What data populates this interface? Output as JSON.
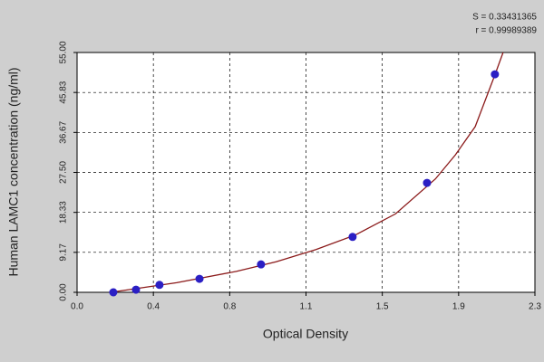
{
  "chart_data": {
    "type": "scatter",
    "annotations": [
      "S = 0.33431365",
      "r = 0.99989389"
    ],
    "xlabel": "Optical Density",
    "ylabel": "Human LAMC1 concentration (ng/ml)",
    "x": [
      0.182,
      0.296,
      0.414,
      0.615,
      0.924,
      1.384,
      1.758,
      2.099
    ],
    "values": [
      0.0,
      0.6,
      1.7,
      3.1,
      6.4,
      12.7,
      25.1,
      50.0
    ],
    "color": "#2b1fc4",
    "curve": {
      "x": [
        0.2,
        0.5,
        0.8,
        1.0,
        1.2,
        1.4,
        1.6,
        1.8,
        1.9,
        2.0,
        2.1,
        2.14
      ],
      "values": [
        0.2,
        2.2,
        4.8,
        7.0,
        9.8,
        13.2,
        18.0,
        26.0,
        31.5,
        38.0,
        50.0,
        55.0
      ],
      "color": "#8b1a1a"
    },
    "xlim": [
      0,
      2.3
    ],
    "ylim": [
      0,
      55
    ],
    "xticks": [
      {
        "value": 0,
        "label": "0.0"
      },
      {
        "value": 0.3833,
        "label": "0.4"
      },
      {
        "value": 0.7667,
        "label": "0.8"
      },
      {
        "value": 1.15,
        "label": "1.1"
      },
      {
        "value": 1.5333,
        "label": "1.5"
      },
      {
        "value": 1.9167,
        "label": "1.9"
      },
      {
        "value": 2.3,
        "label": "2.3"
      }
    ],
    "yticks": [
      {
        "value": 0,
        "label": "0.00"
      },
      {
        "value": 9.1667,
        "label": "9.17"
      },
      {
        "value": 18.3333,
        "label": "18.33"
      },
      {
        "value": 27.5,
        "label": "27.50"
      },
      {
        "value": 36.6667,
        "label": "36.67"
      },
      {
        "value": 45.8333,
        "label": "45.83"
      },
      {
        "value": 55,
        "label": "55.00"
      }
    ],
    "grid": true
  }
}
